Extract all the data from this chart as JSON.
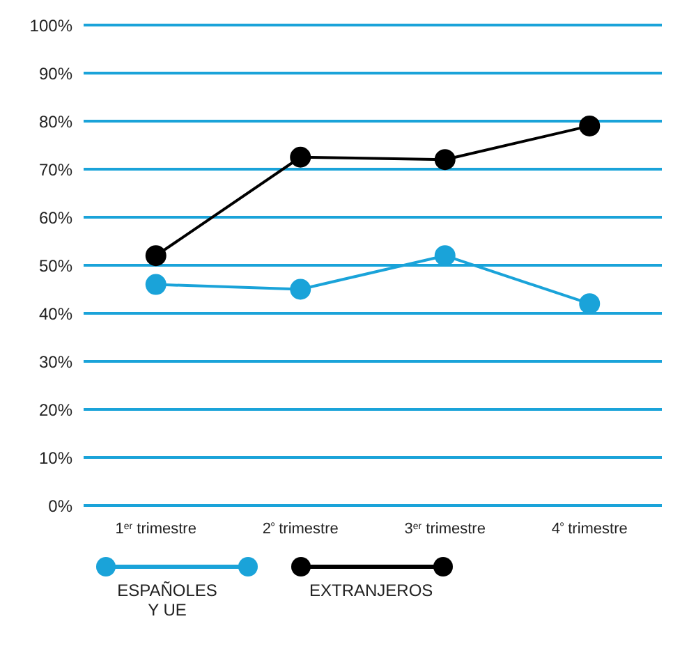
{
  "chart_data": {
    "type": "line",
    "categories": [
      "1$^{er}$ trimestre",
      "2$^{º}$ trimestre",
      "3$^{er}$ trimestre",
      "4$^{º}$ trimestre"
    ],
    "series": [
      {
        "name": "ESPAÑOLES Y UE",
        "color": "#1aa3d9",
        "values": [
          46,
          45,
          52,
          42
        ]
      },
      {
        "name": "EXTRANJEROS",
        "color": "#000000",
        "values": [
          52,
          72.5,
          72,
          79
        ]
      }
    ],
    "ylim": [
      0,
      100
    ],
    "yticks": [
      {
        "value": 0,
        "label": "0%"
      },
      {
        "value": 10,
        "label": "10%"
      },
      {
        "value": 20,
        "label": "20%"
      },
      {
        "value": 30,
        "label": "30%"
      },
      {
        "value": 40,
        "label": "40%"
      },
      {
        "value": 50,
        "label": "50%"
      },
      {
        "value": 60,
        "label": "60%"
      },
      {
        "value": 70,
        "label": "70%"
      },
      {
        "value": 80,
        "label": "80%"
      },
      {
        "value": 90,
        "label": "90%"
      },
      {
        "value": 100,
        "label": "100%"
      }
    ],
    "grid": "y",
    "legend": "bottom",
    "marker": "circle"
  }
}
